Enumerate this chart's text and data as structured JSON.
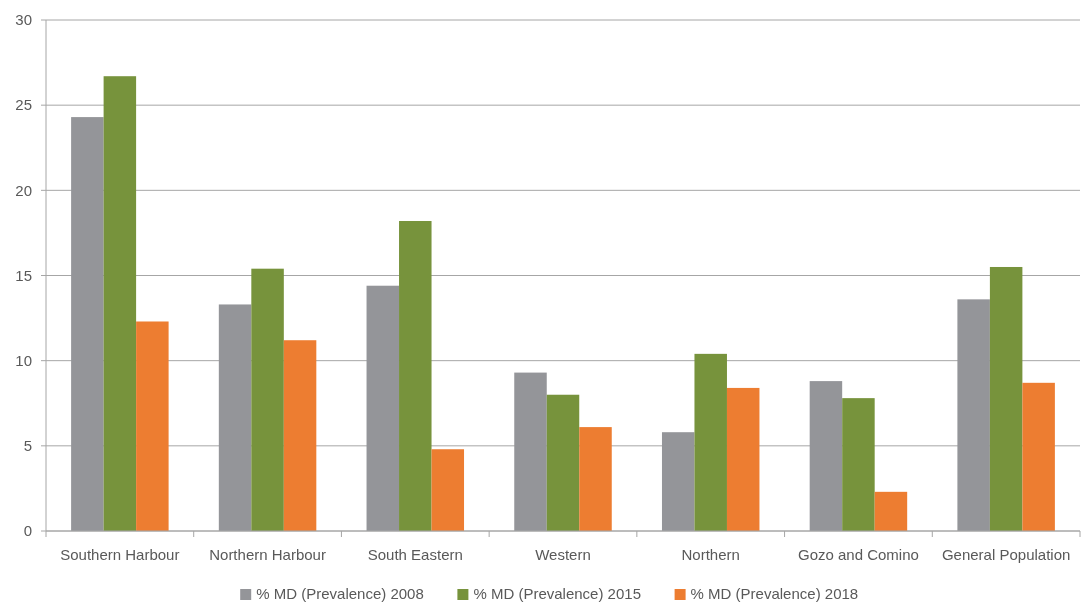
{
  "chart_data": {
    "type": "bar",
    "categories": [
      "Southern Harbour",
      "Northern Harbour",
      "South Eastern",
      "Western",
      "Northern",
      "Gozo and Comino",
      "General Population"
    ],
    "series": [
      {
        "name": "% MD (Prevalence) 2008",
        "color": "#949599",
        "values": [
          24.3,
          13.3,
          14.4,
          9.3,
          5.8,
          8.8,
          13.6
        ]
      },
      {
        "name": "% MD (Prevalence) 2015",
        "color": "#77933c",
        "values": [
          26.7,
          15.4,
          18.2,
          8.0,
          10.4,
          7.8,
          15.5
        ]
      },
      {
        "name": "% MD (Prevalence) 2018",
        "color": "#ed7d31",
        "values": [
          12.3,
          11.2,
          4.8,
          6.1,
          8.4,
          2.3,
          8.7
        ]
      }
    ],
    "ylim": [
      0,
      30
    ],
    "yticks": [
      0,
      5,
      10,
      15,
      20,
      25,
      30
    ],
    "grid": "y",
    "legend": "bottom"
  }
}
